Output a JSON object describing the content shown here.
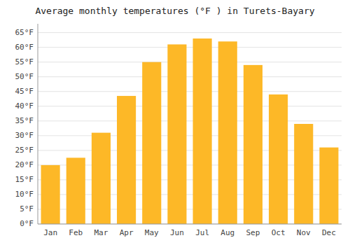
{
  "chart_data": {
    "type": "bar",
    "title": "Average monthly temperatures (°F ) in Turets-Bayary",
    "categories": [
      "Jan",
      "Feb",
      "Mar",
      "Apr",
      "May",
      "Jun",
      "Jul",
      "Aug",
      "Sep",
      "Oct",
      "Nov",
      "Dec"
    ],
    "values": [
      20.0,
      22.5,
      31.0,
      43.5,
      55.0,
      61.0,
      63.0,
      62.0,
      54.0,
      44.0,
      34.0,
      26.0
    ],
    "color": "#FDB827",
    "ylim": [
      0,
      68
    ],
    "yticks": [
      {
        "value": 0,
        "label": "0°F"
      },
      {
        "value": 5,
        "label": "5°F"
      },
      {
        "value": 10,
        "label": "10°F"
      },
      {
        "value": 15,
        "label": "15°F"
      },
      {
        "value": 20,
        "label": "20°F"
      },
      {
        "value": 25,
        "label": "25°F"
      },
      {
        "value": 30,
        "label": "30°F"
      },
      {
        "value": 35,
        "label": "35°F"
      },
      {
        "value": 40,
        "label": "40°F"
      },
      {
        "value": 45,
        "label": "45°F"
      },
      {
        "value": 50,
        "label": "50°F"
      },
      {
        "value": 55,
        "label": "55°F"
      },
      {
        "value": 60,
        "label": "60°F"
      },
      {
        "value": 65,
        "label": "65°F"
      }
    ],
    "grid": true
  }
}
